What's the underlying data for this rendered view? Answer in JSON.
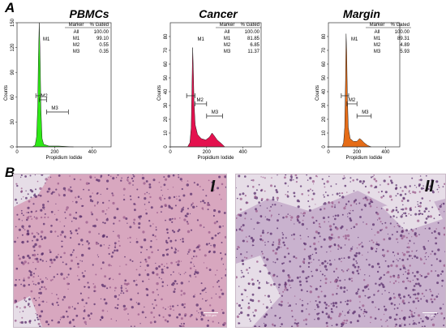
{
  "panels": {
    "a": "A",
    "b": "B"
  },
  "chart_data": [
    {
      "type": "histogram",
      "title": "PBMCs",
      "xlabel": "Propidium Iodide",
      "ylabel": "Counts",
      "xlim": [
        0,
        500
      ],
      "ylim": [
        0,
        150
      ],
      "xticks": [
        0,
        200,
        400
      ],
      "yticks": [
        0,
        30,
        60,
        90,
        120,
        150
      ],
      "fill": "#2eea16",
      "markers": [
        {
          "name": "M1",
          "from": 100,
          "to": 125
        },
        {
          "name": "M2",
          "from": 118,
          "to": 157
        },
        {
          "name": "M3",
          "from": 157,
          "to": 273
        }
      ],
      "table": {
        "headers": [
          "Marker",
          "% Gated"
        ],
        "rows": [
          [
            "All",
            "100.00"
          ],
          [
            "M1",
            "99.10"
          ],
          [
            "M2",
            "0.55"
          ],
          [
            "M3",
            "0.35"
          ]
        ]
      },
      "histogram": [
        [
          0,
          0
        ],
        [
          80,
          0
        ],
        [
          96,
          2
        ],
        [
          104,
          12
        ],
        [
          110,
          48
        ],
        [
          114,
          110
        ],
        [
          118,
          155
        ],
        [
          122,
          118
        ],
        [
          127,
          45
        ],
        [
          133,
          10
        ],
        [
          142,
          3
        ],
        [
          170,
          1
        ],
        [
          220,
          1
        ],
        [
          300,
          0
        ]
      ]
    },
    {
      "type": "histogram",
      "title": "Cancer",
      "xlabel": "Propidium Iodide",
      "ylabel": "Counts",
      "xlim": [
        0,
        500
      ],
      "ylim": [
        0,
        90
      ],
      "xticks": [
        0,
        200,
        400
      ],
      "yticks": [
        0,
        10,
        20,
        30,
        40,
        50,
        60,
        70,
        80
      ],
      "fill": "#e4114e",
      "markers": [
        {
          "name": "M1",
          "from": 90,
          "to": 136
        },
        {
          "name": "M2",
          "from": 136,
          "to": 200
        },
        {
          "name": "M3",
          "from": 200,
          "to": 288
        }
      ],
      "table": {
        "headers": [
          "Marker",
          "% Gated"
        ],
        "rows": [
          [
            "All",
            "100.00"
          ],
          [
            "M1",
            "81.85"
          ],
          [
            "M2",
            "6.85"
          ],
          [
            "M3",
            "11.37"
          ]
        ]
      },
      "histogram": [
        [
          0,
          0
        ],
        [
          95,
          0
        ],
        [
          108,
          3
        ],
        [
          115,
          14
        ],
        [
          119,
          42
        ],
        [
          123,
          72
        ],
        [
          127,
          56
        ],
        [
          131,
          32
        ],
        [
          137,
          16
        ],
        [
          150,
          9
        ],
        [
          170,
          6
        ],
        [
          195,
          5
        ],
        [
          215,
          7
        ],
        [
          230,
          10
        ],
        [
          242,
          8
        ],
        [
          258,
          5
        ],
        [
          285,
          2
        ],
        [
          300,
          0
        ]
      ]
    },
    {
      "type": "histogram",
      "title": "Margin",
      "xlabel": "Propidium Iodide",
      "ylabel": "Counts",
      "xlim": [
        0,
        500
      ],
      "ylim": [
        0,
        90
      ],
      "xticks": [
        0,
        200,
        400
      ],
      "yticks": [
        0,
        10,
        20,
        30,
        40,
        50,
        60,
        70,
        80
      ],
      "fill": "#e56c17",
      "markers": [
        {
          "name": "M1",
          "from": 90,
          "to": 142
        },
        {
          "name": "M2",
          "from": 130,
          "to": 200
        },
        {
          "name": "M3",
          "from": 200,
          "to": 300
        }
      ],
      "table": {
        "headers": [
          "Marker",
          "% Gated"
        ],
        "rows": [
          [
            "All",
            "100.00"
          ],
          [
            "M1",
            "89.31"
          ],
          [
            "M2",
            "4.89"
          ],
          [
            "M3",
            "5.93"
          ]
        ]
      },
      "histogram": [
        [
          0,
          0
        ],
        [
          95,
          0
        ],
        [
          106,
          3
        ],
        [
          114,
          14
        ],
        [
          120,
          48
        ],
        [
          124,
          82
        ],
        [
          128,
          70
        ],
        [
          133,
          36
        ],
        [
          139,
          14
        ],
        [
          152,
          6
        ],
        [
          175,
          4
        ],
        [
          200,
          4
        ],
        [
          218,
          6
        ],
        [
          232,
          5
        ],
        [
          250,
          3
        ],
        [
          275,
          1
        ],
        [
          300,
          0
        ]
      ]
    }
  ],
  "micrographs": [
    {
      "label": "I",
      "scale": "100 μm",
      "tint": "#d8a7bf"
    },
    {
      "label": "II",
      "scale": "100 μm",
      "tint": "#c9b2ce"
    }
  ]
}
